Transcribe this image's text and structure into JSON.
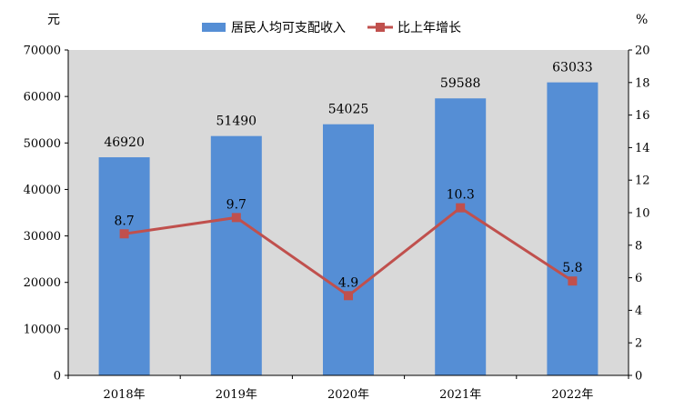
{
  "chart_data": {
    "type": "bar",
    "categories": [
      "2018年",
      "2019年",
      "2020年",
      "2021年",
      "2022年"
    ],
    "series": [
      {
        "name": "居民人均可支配收入",
        "type": "bar",
        "axis": "left",
        "values": [
          46920,
          51490,
          54025,
          59588,
          63033
        ],
        "color": "#558ed5"
      },
      {
        "name": "比上年增长",
        "type": "line",
        "axis": "right",
        "values": [
          8.7,
          9.7,
          4.9,
          10.3,
          5.8
        ],
        "color": "#c0504d"
      }
    ],
    "left_axis": {
      "unit": "元",
      "range": [
        0,
        70000
      ],
      "ticks": [
        "0",
        "10000",
        "20000",
        "30000",
        "40000",
        "50000",
        "60000",
        "70000"
      ]
    },
    "right_axis": {
      "unit": "%",
      "range": [
        0,
        20
      ],
      "ticks": [
        "0",
        "2",
        "4",
        "6",
        "8",
        "10",
        "12",
        "14",
        "16",
        "18",
        "20"
      ]
    },
    "plot_background": "#d9d9d9",
    "legend_position": "top"
  }
}
